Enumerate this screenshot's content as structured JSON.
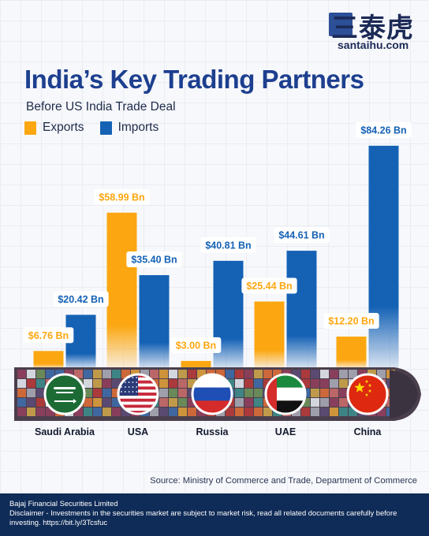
{
  "header": {
    "logo_text": "三泰虎",
    "logo_url": "santaihu.com",
    "title": "India’s Key Trading Partners",
    "subtitle": "Before US India Trade Deal"
  },
  "colors": {
    "exports": "#fca711",
    "imports": "#1562b5",
    "title": "#1d3f8f",
    "footer_bg": "#0f2b57"
  },
  "chart_data": {
    "type": "bar",
    "title": "India’s Key Trading Partners",
    "subtitle": "Before US India Trade Deal",
    "categories": [
      "Saudi Arabia",
      "USA",
      "Russia",
      "UAE",
      "China"
    ],
    "series": [
      {
        "name": "Exports",
        "values": [
          6.76,
          58.99,
          3.0,
          25.44,
          12.2
        ],
        "labels": [
          "$6.76 Bn",
          "$58.99 Bn",
          "$3.00 Bn",
          "$25.44 Bn",
          "$12.20 Bn"
        ]
      },
      {
        "name": "Imports",
        "values": [
          20.42,
          35.4,
          40.81,
          44.61,
          84.26
        ],
        "labels": [
          "$20.42 Bn",
          "$35.40 Bn",
          "$40.81 Bn",
          "$44.61 Bn",
          "$84.26 Bn"
        ]
      }
    ],
    "flags": [
      "saudi-arabia-flag",
      "usa-flag",
      "russia-flag",
      "uae-flag",
      "china-flag"
    ],
    "xlabel": "",
    "ylabel": "",
    "legend": "top-left",
    "grid": false
  },
  "source": "Source: Ministry of Commerce and Trade, Department of Commerce",
  "footer": {
    "company": "Bajaj Financial Securities Limited",
    "disclaimer": "Disclaimer - Investments in the securities market are subject to market risk, read all related documents carefully before investing. https://bit.ly/3Tcsfuc"
  }
}
